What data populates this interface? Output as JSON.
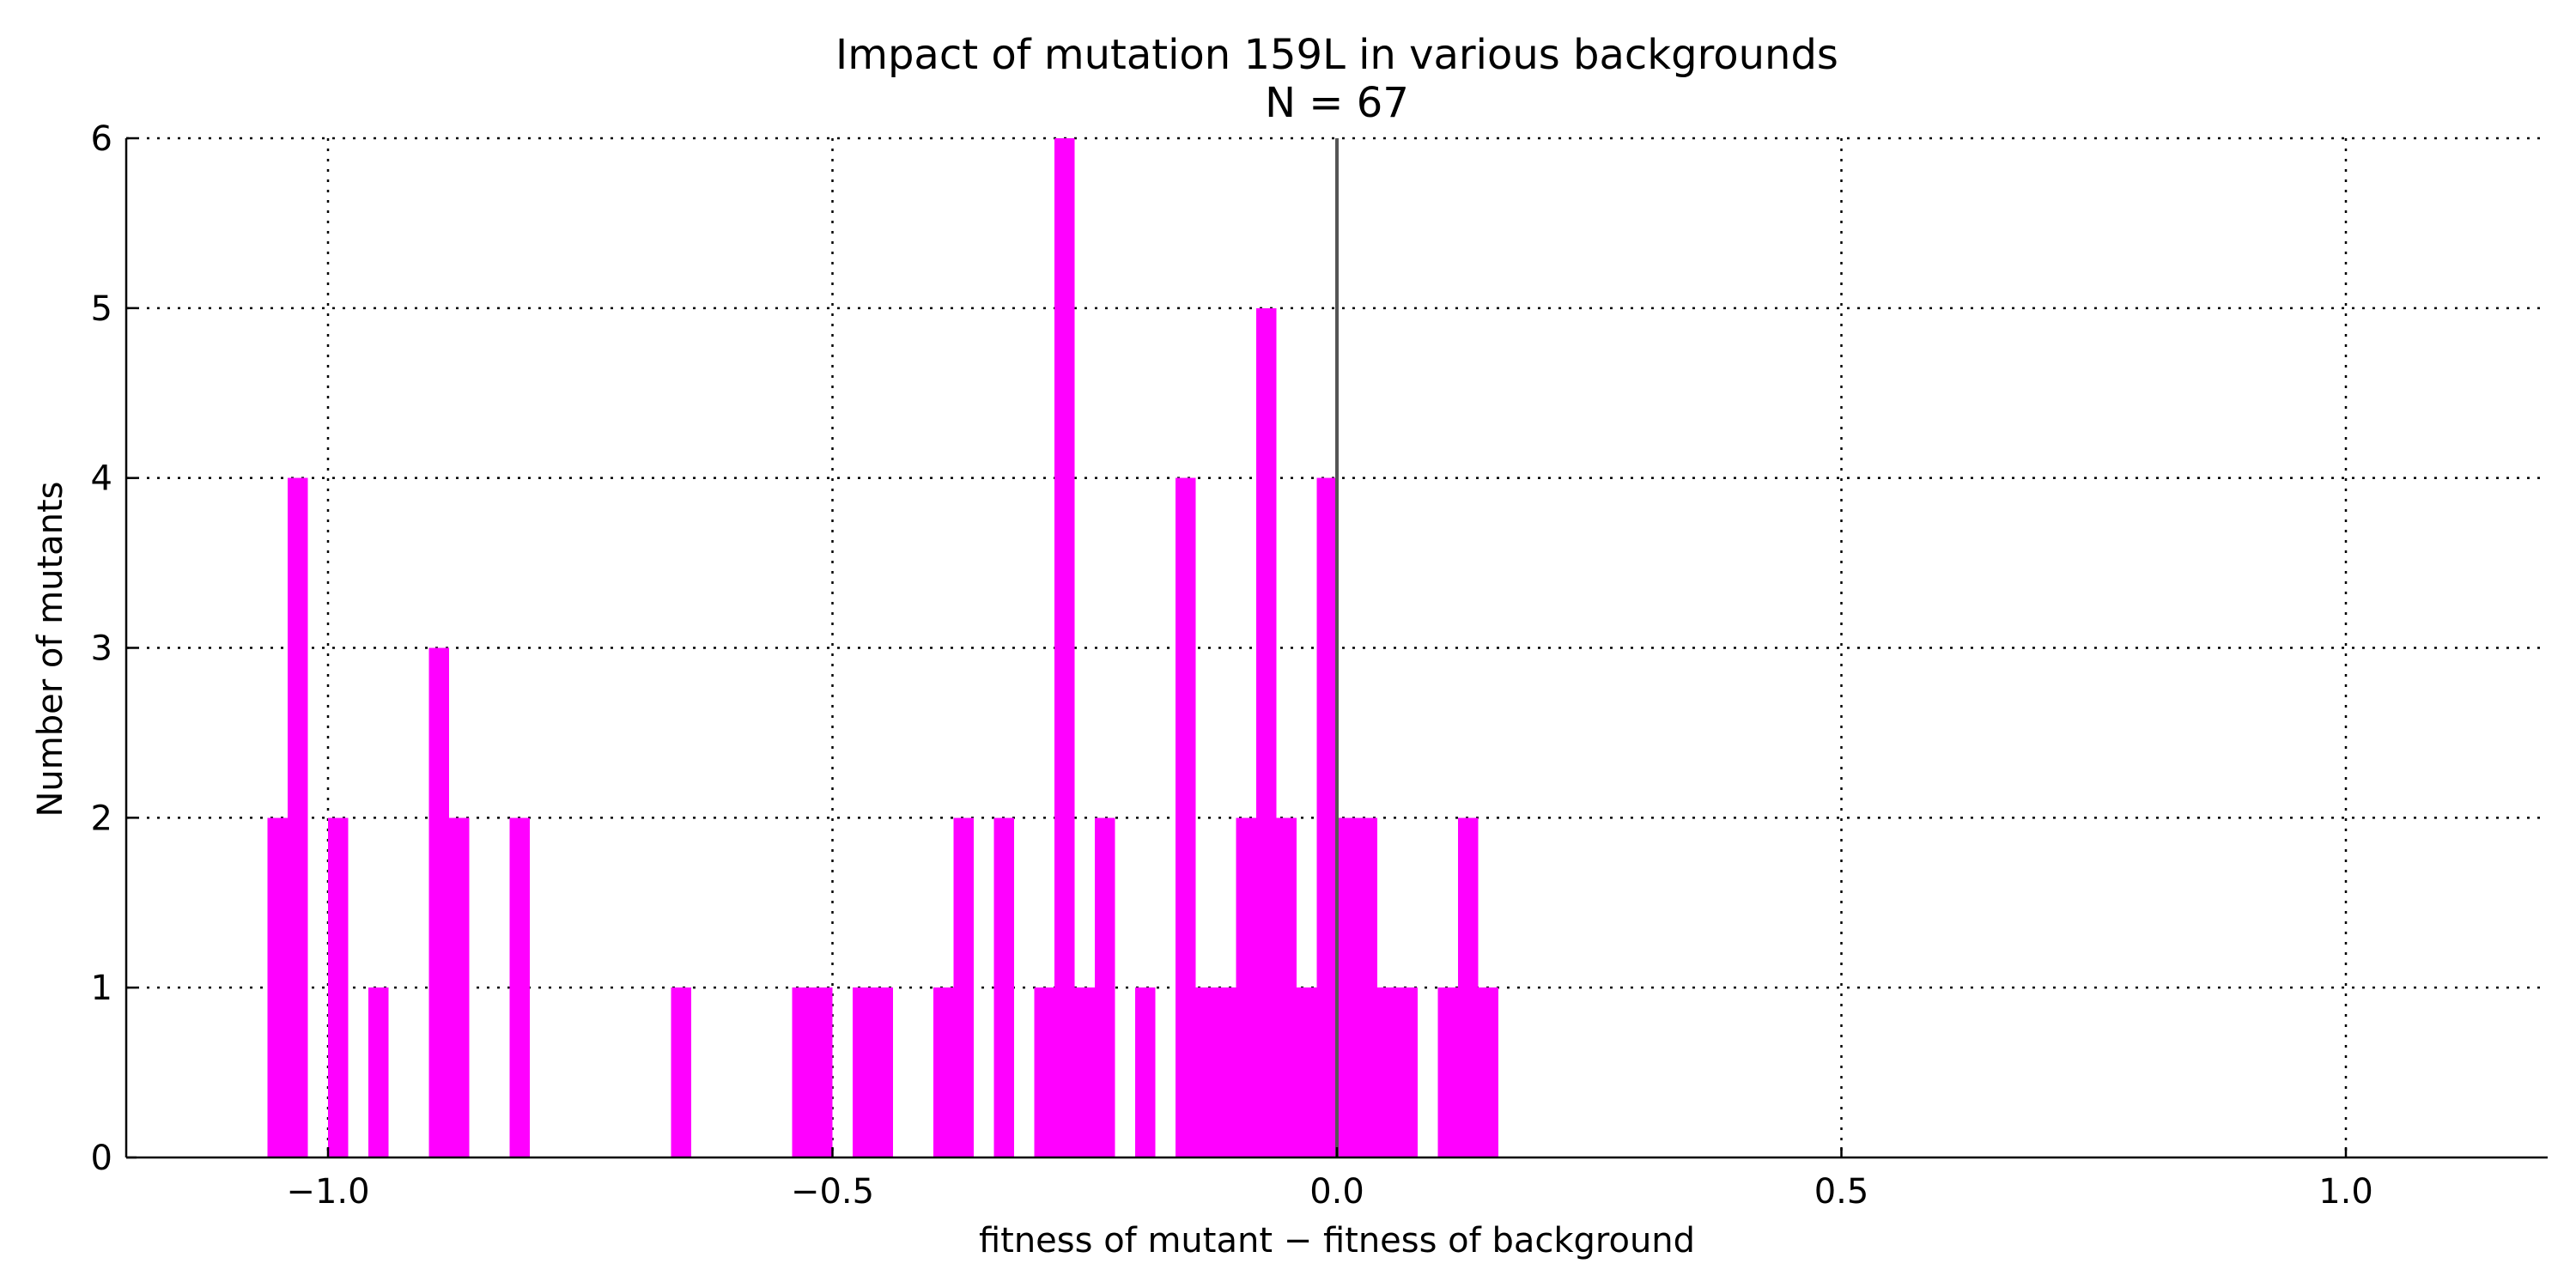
{
  "chart_data": {
    "type": "bar",
    "title": "Impact of mutation 159L in various backgrounds",
    "subtitle": "N = 67",
    "xlabel": "fitness of mutant  −  fitness of background",
    "ylabel": "Number of mutants",
    "xlim": [
      -1.2,
      1.2
    ],
    "ylim": [
      0,
      6
    ],
    "x_ticks": [
      -1.0,
      -0.5,
      0.0,
      0.5,
      1.0
    ],
    "x_tick_labels": [
      "−1.0",
      "−0.5",
      "0.0",
      "0.5",
      "1.0"
    ],
    "y_ticks": [
      0,
      1,
      2,
      3,
      4,
      5,
      6
    ],
    "y_tick_labels": [
      "0",
      "1",
      "2",
      "3",
      "4",
      "5",
      "6"
    ],
    "grid": true,
    "reference_line_x": 0.0,
    "bar_color": "#ff00ff",
    "bin_width": 0.02,
    "bins": [
      {
        "x": -1.06,
        "count": 2
      },
      {
        "x": -1.04,
        "count": 4
      },
      {
        "x": -1.0,
        "count": 2
      },
      {
        "x": -0.96,
        "count": 1
      },
      {
        "x": -0.9,
        "count": 3
      },
      {
        "x": -0.88,
        "count": 2
      },
      {
        "x": -0.82,
        "count": 2
      },
      {
        "x": -0.66,
        "count": 1
      },
      {
        "x": -0.54,
        "count": 1
      },
      {
        "x": -0.52,
        "count": 1
      },
      {
        "x": -0.48,
        "count": 1
      },
      {
        "x": -0.46,
        "count": 1
      },
      {
        "x": -0.4,
        "count": 1
      },
      {
        "x": -0.38,
        "count": 2
      },
      {
        "x": -0.34,
        "count": 2
      },
      {
        "x": -0.3,
        "count": 1
      },
      {
        "x": -0.28,
        "count": 6
      },
      {
        "x": -0.26,
        "count": 1
      },
      {
        "x": -0.24,
        "count": 2
      },
      {
        "x": -0.2,
        "count": 1
      },
      {
        "x": -0.16,
        "count": 4
      },
      {
        "x": -0.14,
        "count": 1
      },
      {
        "x": -0.12,
        "count": 1
      },
      {
        "x": -0.1,
        "count": 2
      },
      {
        "x": -0.08,
        "count": 5
      },
      {
        "x": -0.06,
        "count": 2
      },
      {
        "x": -0.04,
        "count": 1
      },
      {
        "x": -0.02,
        "count": 4
      },
      {
        "x": 0.0,
        "count": 2
      },
      {
        "x": 0.02,
        "count": 2
      },
      {
        "x": 0.04,
        "count": 1
      },
      {
        "x": 0.06,
        "count": 1
      },
      {
        "x": 0.1,
        "count": 1
      },
      {
        "x": 0.12,
        "count": 2
      },
      {
        "x": 0.14,
        "count": 1
      }
    ]
  }
}
